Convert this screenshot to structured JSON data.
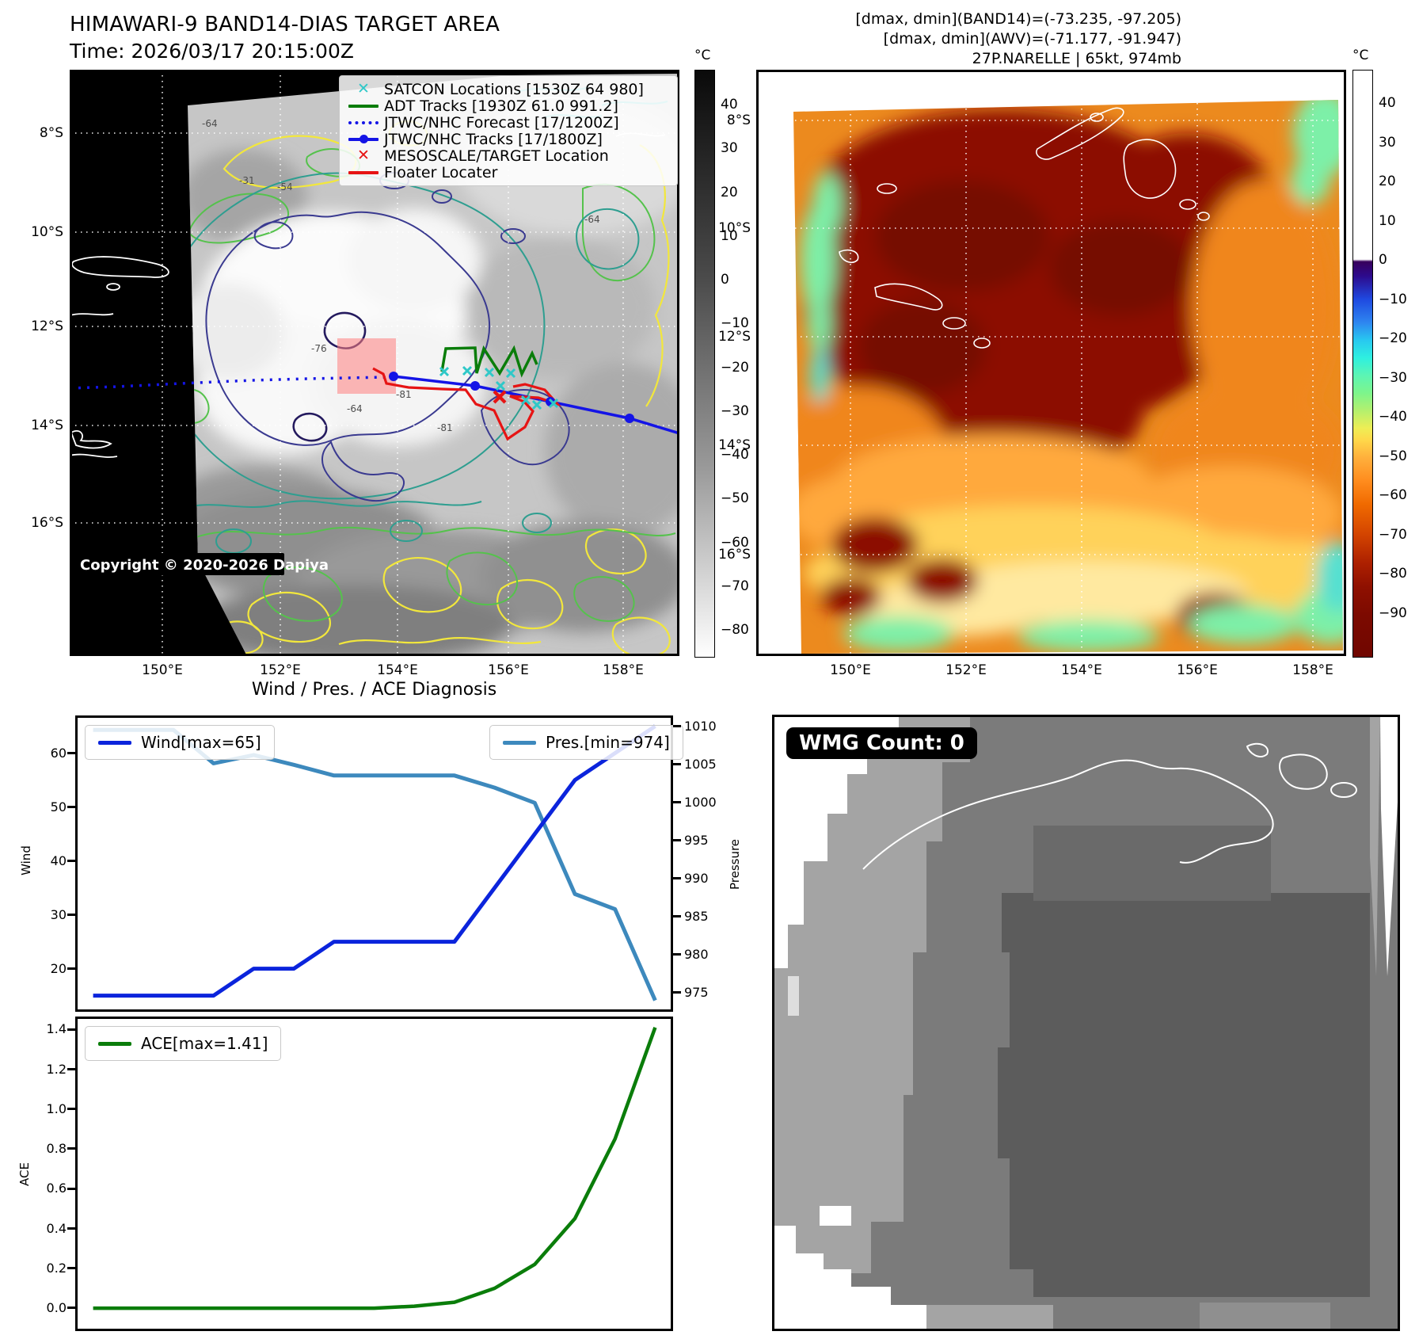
{
  "panel_tl": {
    "title": "HIMAWARI-9 BAND14-DIAS TARGET AREA",
    "subtitle": "Time: 2026/03/17 20:15:00Z",
    "copyright": "Copyright © 2020-2026 Dapiya",
    "legend": [
      {
        "label": "SATCON Locations [1530Z 64 980]",
        "marker": "cyan-x",
        "color": "#2fc8c8"
      },
      {
        "label": "ADT Tracks [1930Z 61.0 991.2]",
        "marker": "green-line",
        "color": "#0a7d0a"
      },
      {
        "label": "JTWC/NHC Forecast [17/1200Z]",
        "marker": "blue-dotted-line",
        "color": "#1414e6"
      },
      {
        "label": "JTWC/NHC Tracks [17/1800Z]",
        "marker": "blue-line-dot",
        "color": "#1414e6"
      },
      {
        "label": "MESOSCALE/TARGET Location",
        "marker": "red-x",
        "color": "#e61414"
      },
      {
        "label": "Floater Locater",
        "marker": "red-line",
        "color": "#e61414"
      }
    ],
    "lat_ticks": [
      "8°S",
      "10°S",
      "12°S",
      "14°S",
      "16°S"
    ],
    "lon_ticks": [
      "150°E",
      "152°E",
      "154°E",
      "156°E",
      "158°E"
    ],
    "colorbar": {
      "unit": "°C",
      "ticks": [
        "40",
        "30",
        "20",
        "10",
        "0",
        "−10",
        "−20",
        "−30",
        "−40",
        "−50",
        "−60",
        "−70",
        "−80"
      ]
    },
    "contour_labels": {
      "a": "-76",
      "b": "-81",
      "c": "-81",
      "d": "-64",
      "e": "-54",
      "f": "-64",
      "g": "-31",
      "h": "-64"
    }
  },
  "panel_tr": {
    "header": {
      "line1": "[dmax, dmin](BAND14)=(-73.235, -97.205)",
      "line2": "[dmax, dmin](AWV)=(-71.177, -91.947)",
      "line3": "27P.NARELLE | 65kt, 974mb"
    },
    "lat_ticks": [
      "8°S",
      "10°S",
      "12°S",
      "14°S",
      "16°S"
    ],
    "lon_ticks": [
      "150°E",
      "152°E",
      "154°E",
      "156°E",
      "158°E"
    ],
    "colorbar": {
      "unit": "°C",
      "ticks": [
        "40",
        "30",
        "20",
        "10",
        "0",
        "−10",
        "−20",
        "−30",
        "−40",
        "−50",
        "−60",
        "−70",
        "−80",
        "−90"
      ]
    }
  },
  "panel_bl": {
    "title": "Wind / Pres. / ACE Diagnosis"
  },
  "panel_br": {
    "badge": "WMG Count: 0"
  },
  "chart_data": [
    {
      "type": "line",
      "title": "Wind / Pres. / ACE Diagnosis",
      "ylabel_left": "Wind",
      "ylabel_right": "Pressure",
      "y_left_ticks": [
        "60",
        "50",
        "40",
        "30",
        "20"
      ],
      "y_right_ticks": [
        "1010",
        "1005",
        "1000",
        "995",
        "990",
        "985",
        "980",
        "975"
      ],
      "grid": false,
      "legend_position": "upper-left and upper-right",
      "series": [
        {
          "name": "Wind[max=65]",
          "color": "#0b24dc",
          "axis": "left",
          "y_range": [
            12,
            67
          ],
          "values": [
            15,
            15,
            15,
            15,
            20,
            20,
            25,
            25,
            25,
            25,
            35,
            45,
            55,
            60,
            65
          ]
        },
        {
          "name": "Pres.[min=974]",
          "color": "#3d89bd",
          "axis": "right",
          "y_range": [
            972.5,
            1011.5
          ],
          "values": [
            1009.6,
            1009.6,
            1009.6,
            1005.2,
            1006.3,
            1005.0,
            1003.6,
            1003.6,
            1003.6,
            1003.6,
            1002.0,
            1000.0,
            988.0,
            986.0,
            974.0
          ]
        }
      ]
    },
    {
      "type": "line",
      "ylabel": "ACE",
      "y_ticks": [
        "1.4",
        "1.2",
        "1.0",
        "0.8",
        "0.6",
        "0.4",
        "0.2",
        "0.0"
      ],
      "grid": false,
      "legend_position": "upper-left",
      "series": [
        {
          "name": "ACE[max=1.41]",
          "color": "#0a7d0a",
          "y_range": [
            -0.115,
            1.465
          ],
          "values": [
            0,
            0,
            0,
            0,
            0,
            0,
            0,
            0,
            0.01,
            0.03,
            0.1,
            0.22,
            0.45,
            0.85,
            1.41
          ]
        }
      ]
    }
  ]
}
